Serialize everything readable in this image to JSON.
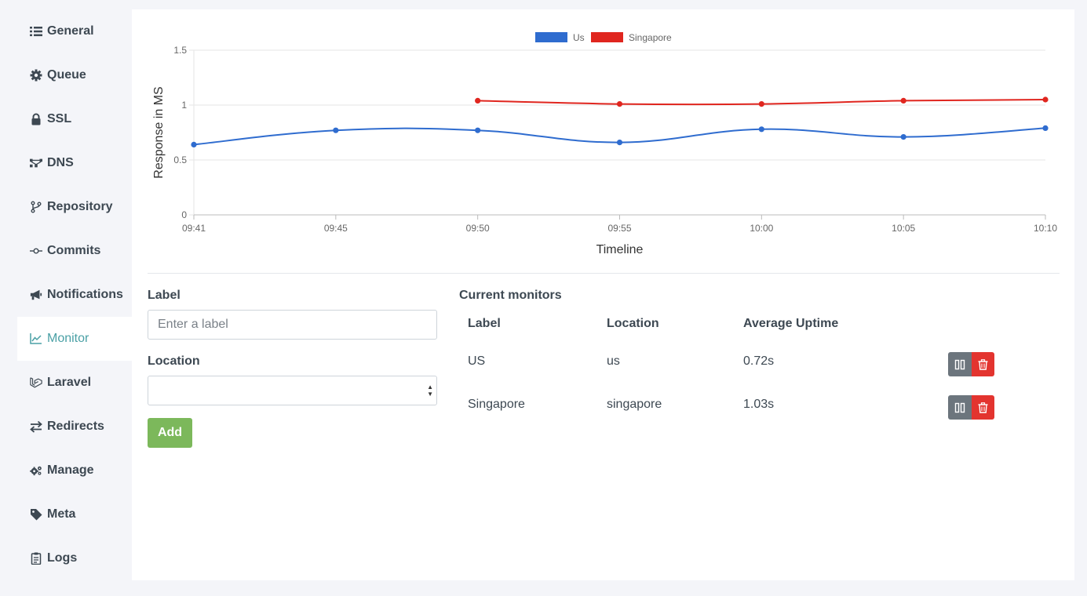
{
  "sidebar": {
    "items": [
      {
        "label": "General",
        "icon": "list-icon",
        "active": false
      },
      {
        "label": "Queue",
        "icon": "gear-icon",
        "active": false
      },
      {
        "label": "SSL",
        "icon": "lock-icon",
        "active": false
      },
      {
        "label": "DNS",
        "icon": "network-icon",
        "active": false
      },
      {
        "label": "Repository",
        "icon": "code-branch-icon",
        "active": false
      },
      {
        "label": "Commits",
        "icon": "commit-icon",
        "active": false
      },
      {
        "label": "Notifications",
        "icon": "bullhorn-icon",
        "active": false
      },
      {
        "label": "Monitor",
        "icon": "chart-line-icon",
        "active": true
      },
      {
        "label": "Laravel",
        "icon": "laravel-icon",
        "active": false
      },
      {
        "label": "Redirects",
        "icon": "exchange-icon",
        "active": false
      },
      {
        "label": "Manage",
        "icon": "cogs-icon",
        "active": false
      },
      {
        "label": "Meta",
        "icon": "tag-icon",
        "active": false
      },
      {
        "label": "Logs",
        "icon": "clipboard-icon",
        "active": false
      }
    ]
  },
  "chart_data": {
    "type": "line",
    "categories": [
      "09:41",
      "09:45",
      "09:50",
      "09:55",
      "10:00",
      "10:05",
      "10:10"
    ],
    "series": [
      {
        "name": "Us",
        "color": "#2f6ccf",
        "values": [
          0.64,
          0.77,
          0.77,
          0.66,
          0.78,
          0.71,
          0.79
        ]
      },
      {
        "name": "Singapore",
        "color": "#e0261f",
        "values": [
          null,
          null,
          1.04,
          1.01,
          1.01,
          1.04,
          1.05
        ]
      }
    ],
    "xlabel": "Timeline",
    "ylabel": "Response in MS",
    "ylim": [
      0,
      1.5
    ],
    "yticks": [
      "0",
      "0.5",
      "1",
      "1.5"
    ],
    "grid": true,
    "legend": "top-center"
  },
  "form": {
    "label_title": "Label",
    "label_placeholder": "Enter a label",
    "location_title": "Location",
    "location_value": "",
    "add_label": "Add"
  },
  "monitors": {
    "title": "Current monitors",
    "headers": [
      "Label",
      "Location",
      "Average Uptime"
    ],
    "rows": [
      {
        "label": "US",
        "location": "us",
        "uptime": "0.72s"
      },
      {
        "label": "Singapore",
        "location": "singapore",
        "uptime": "1.03s"
      }
    ]
  },
  "colors": {
    "accent": "#4aa0a5",
    "add_button": "#7cb85b",
    "pause_button": "#6c757d",
    "delete_button": "#e3342f"
  }
}
